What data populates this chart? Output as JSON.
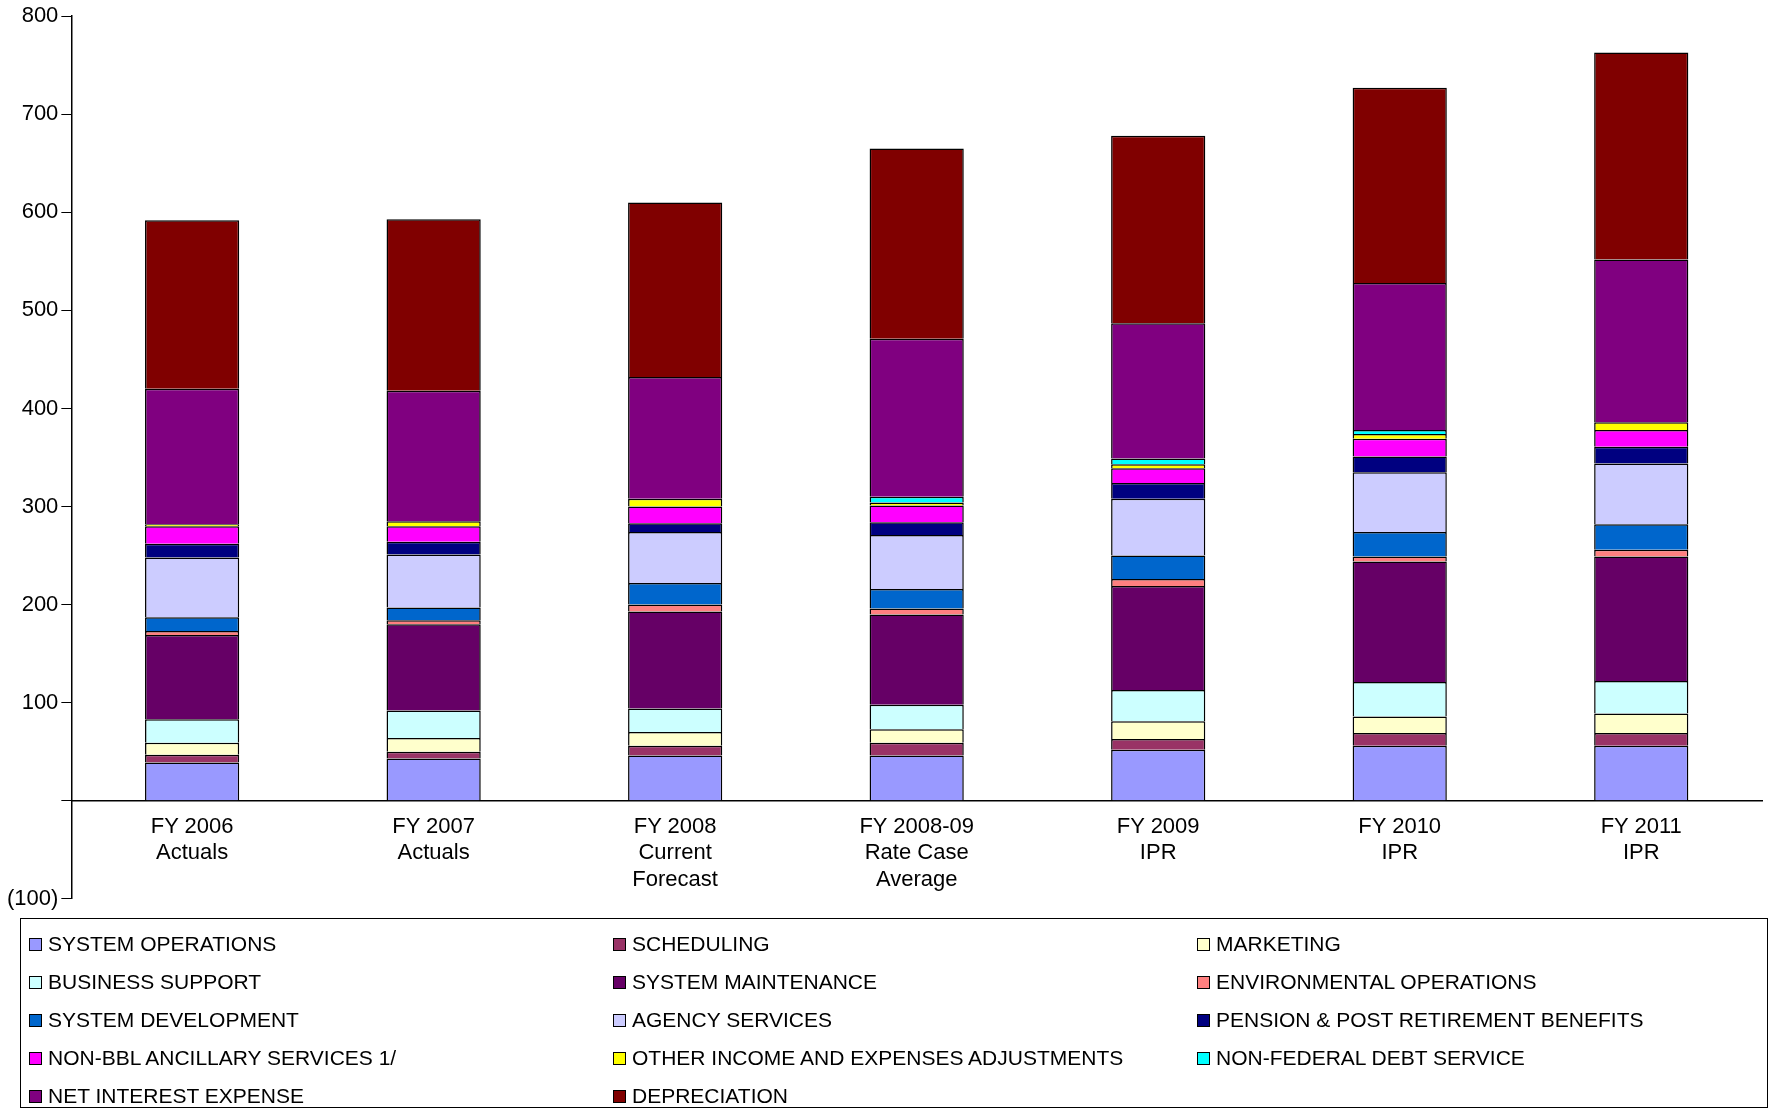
{
  "chart_data": {
    "type": "bar",
    "stacked": true,
    "categories": [
      "FY 2006\nActuals",
      "FY 2007\nActuals",
      "FY 2008\nCurrent\nForecast",
      "FY 2008-09\nRate Case\nAverage",
      "FY 2009\nIPR",
      "FY 2010\nIPR",
      "FY 2011\nIPR"
    ],
    "series": [
      {
        "name": "SYSTEM OPERATIONS",
        "color": "#9999ff",
        "values": [
          39,
          43,
          46,
          46,
          52,
          56,
          56
        ]
      },
      {
        "name": "SCHEDULING",
        "color": "#993366",
        "values": [
          8,
          7,
          10,
          13,
          11,
          13,
          13
        ]
      },
      {
        "name": "MARKETING",
        "color": "#ffffcc",
        "values": [
          12,
          14,
          14,
          14,
          18,
          17,
          20
        ]
      },
      {
        "name": "BUSINESS SUPPORT",
        "color": "#ccffff",
        "values": [
          24,
          28,
          24,
          25,
          32,
          35,
          33
        ]
      },
      {
        "name": "SYSTEM MAINTENANCE",
        "color": "#660066",
        "values": [
          86,
          88,
          99,
          92,
          106,
          123,
          127
        ]
      },
      {
        "name": "ENVIRONMENTAL OPERATIONS",
        "color": "#ff8080",
        "values": [
          4,
          4,
          7,
          6,
          7,
          5,
          7
        ]
      },
      {
        "name": "SYSTEM DEVELOPMENT",
        "color": "#0066cc",
        "values": [
          14,
          13,
          22,
          20,
          24,
          25,
          26
        ]
      },
      {
        "name": "AGENCY SERVICES",
        "color": "#ccccff",
        "values": [
          61,
          54,
          52,
          55,
          58,
          61,
          62
        ]
      },
      {
        "name": "PENSION & POST RETIREMENT BENEFITS",
        "color": "#000080",
        "values": [
          14,
          13,
          9,
          13,
          16,
          16,
          17
        ]
      },
      {
        "name": "NON-BBL ANCILLARY SERVICES  1/",
        "color": "#ff00ff",
        "values": [
          18,
          16,
          17,
          17,
          15,
          18,
          17
        ]
      },
      {
        "name": "OTHER INCOME AND EXPENSES ADJUSTMENTS",
        "color": "#ffff00",
        "values": [
          2,
          5,
          8,
          3,
          4,
          5,
          8
        ]
      },
      {
        "name": "NON-FEDERAL DEBT SERVICE",
        "color": "#00ffff",
        "values": [
          0,
          0,
          0,
          6,
          6,
          4,
          0
        ]
      },
      {
        "name": "NET INTEREST EXPENSE",
        "color": "#800080",
        "values": [
          138,
          133,
          124,
          161,
          138,
          150,
          166
        ]
      },
      {
        "name": "DEPRECIATION",
        "color": "#800000",
        "values": [
          172,
          175,
          178,
          194,
          191,
          199,
          211
        ]
      }
    ],
    "ylim": [
      -100,
      800
    ],
    "yticks": [
      {
        "value": -100,
        "label": "(100)"
      },
      {
        "value": 0,
        "label": null
      },
      100,
      200,
      300,
      400,
      500,
      600,
      700,
      800
    ],
    "grid": false,
    "legend": "bottom"
  }
}
